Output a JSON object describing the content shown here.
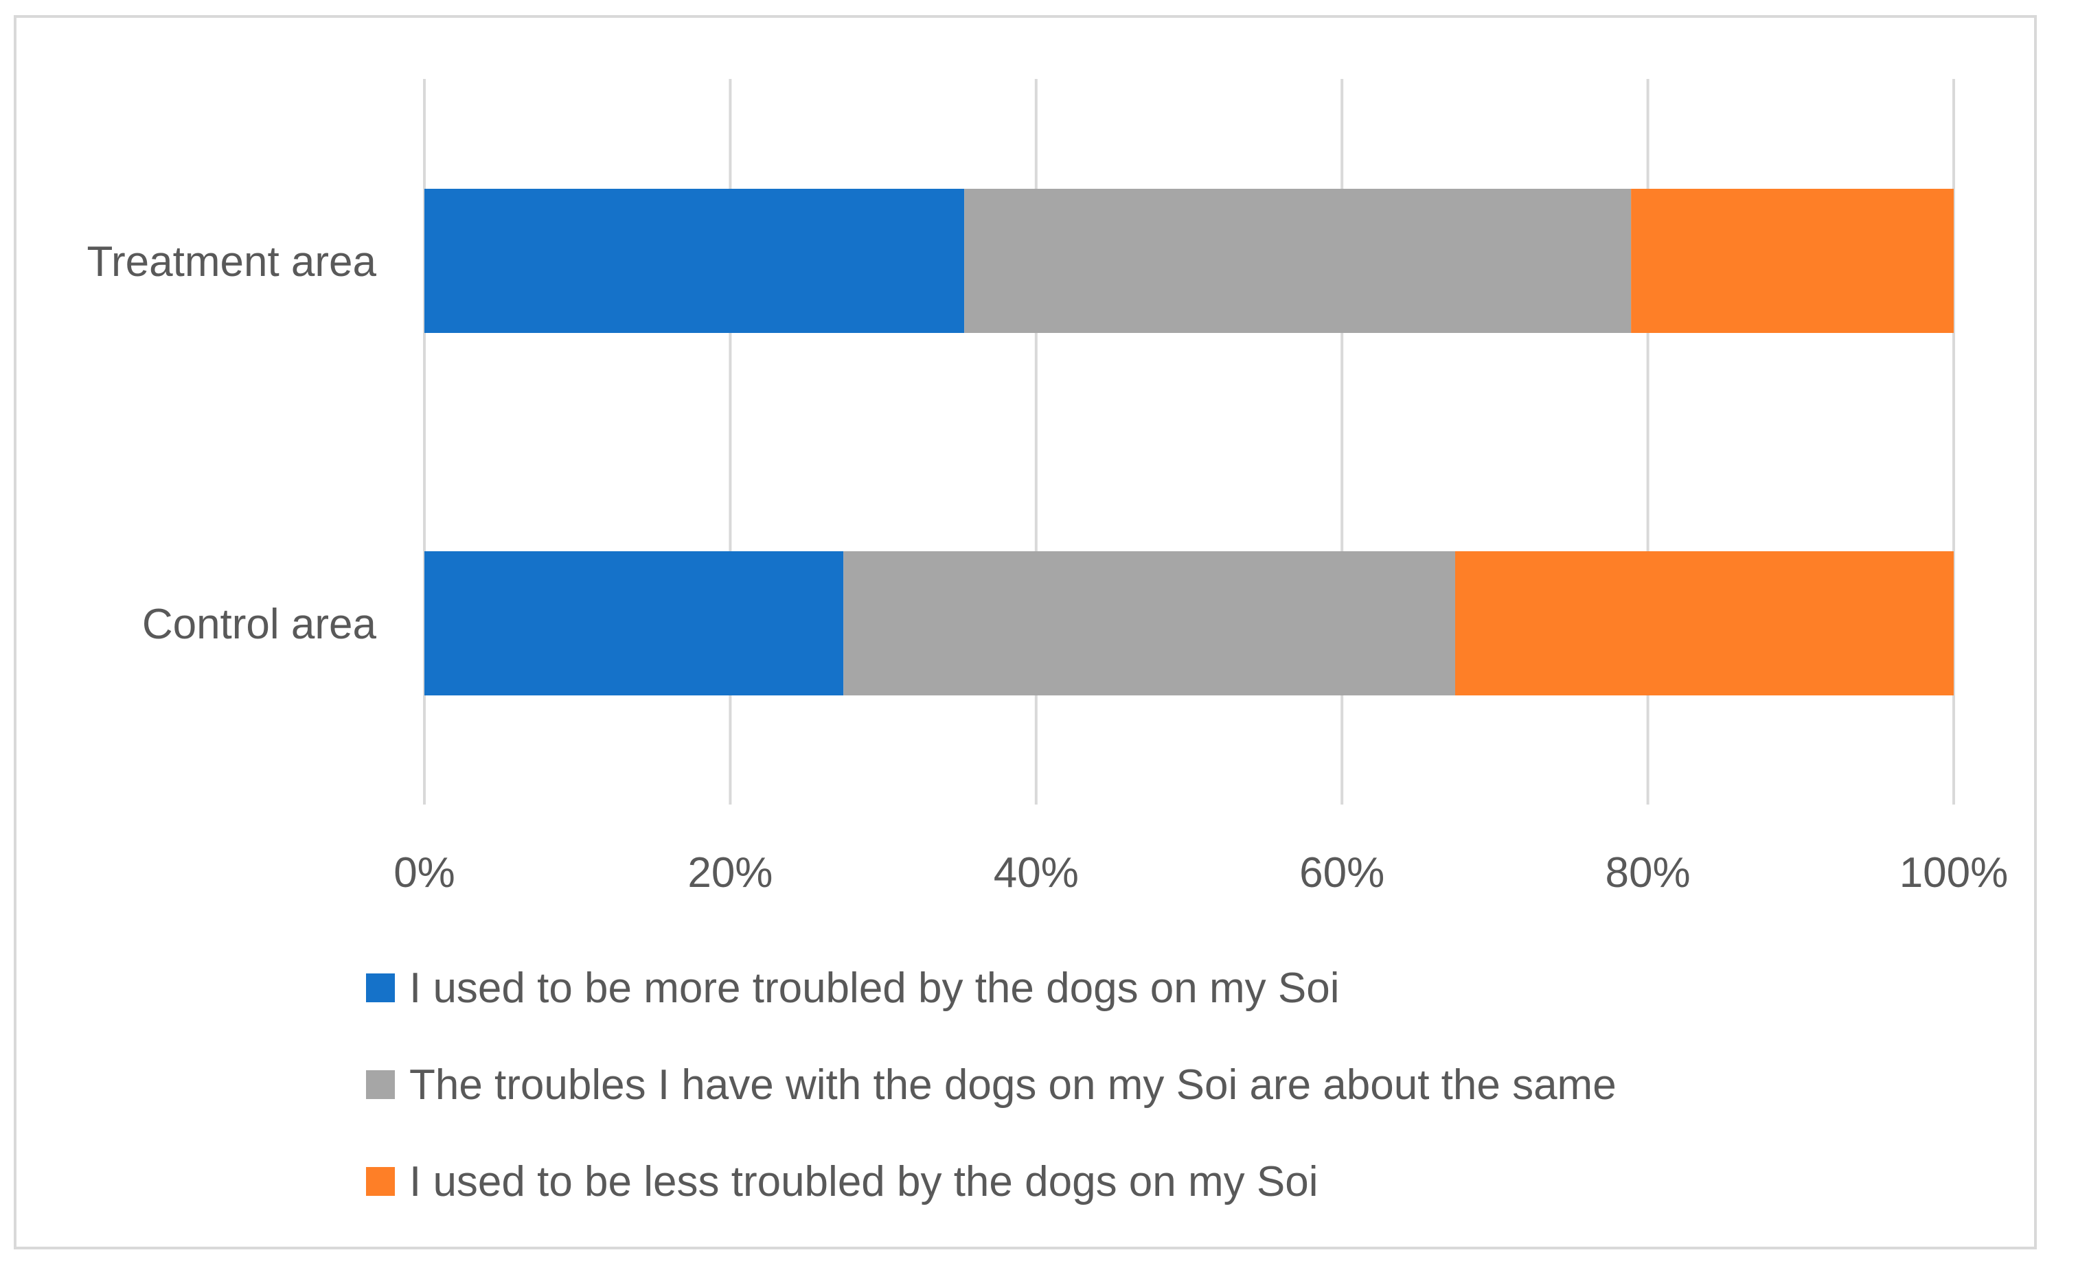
{
  "chart_data": {
    "type": "bar",
    "orientation": "horizontal",
    "stacked": "percent",
    "categories": [
      "Treatment area",
      "Control area"
    ],
    "series": [
      {
        "name": "I used to be more troubled by the dogs on my Soi",
        "color": "#1572c9",
        "values": [
          35.3,
          27.4
        ]
      },
      {
        "name": "The troubles I have with the dogs on my Soi are about the same",
        "color": "#a6a6a6",
        "values": [
          43.6,
          40.0
        ]
      },
      {
        "name": "I used to be less troubled by the dogs on my Soi",
        "color": "#fe7f27",
        "values": [
          21.1,
          32.6
        ]
      }
    ],
    "xlim": [
      0,
      100
    ],
    "ticks": [
      "0%",
      "20%",
      "40%",
      "60%",
      "80%",
      "100%"
    ],
    "grid": "vertical",
    "legend": "bottom",
    "title": "",
    "xlabel": "",
    "ylabel": ""
  }
}
